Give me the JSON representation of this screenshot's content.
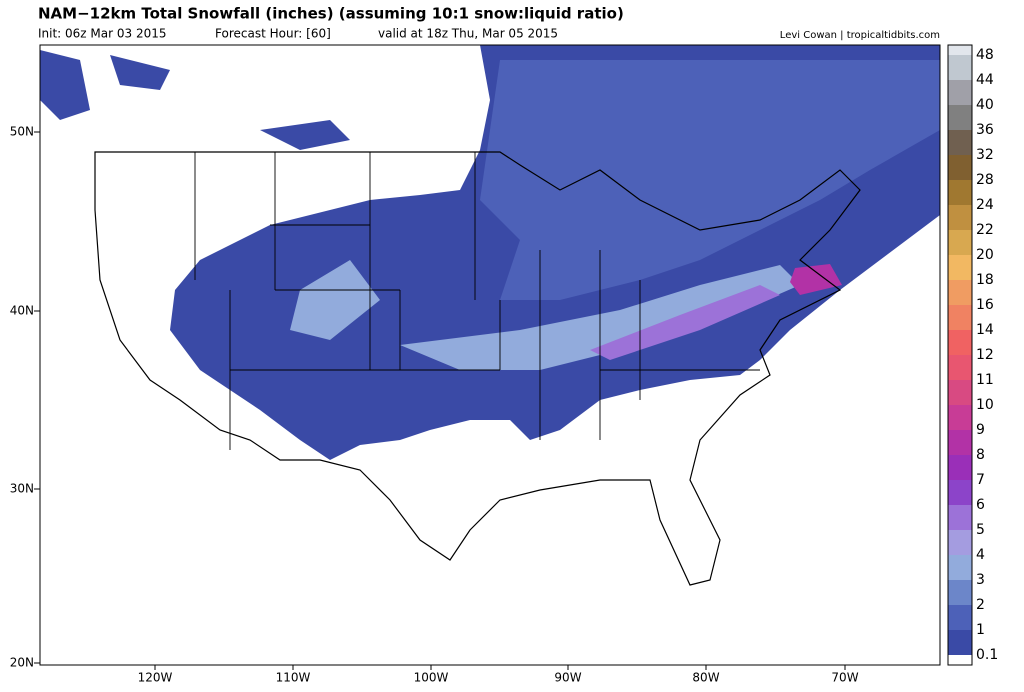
{
  "header": {
    "title": "NAM−12km Total Snowfall (inches) (assuming 10:1 snow:liquid ratio)",
    "init": "Init: 06z Mar 03 2015",
    "forecast_hour": "Forecast Hour: [60]",
    "valid": "valid at 18z Thu, Mar 05 2015",
    "credit": "Levi Cowan | tropicaltidbits.com"
  },
  "map": {
    "lat_labels": [
      "50N",
      "40N",
      "30N",
      "20N"
    ],
    "lon_labels": [
      "120W",
      "110W",
      "100W",
      "90W",
      "80W",
      "70W"
    ]
  },
  "colorbar": {
    "levels": [
      "0.1",
      "1",
      "2",
      "3",
      "4",
      "5",
      "6",
      "7",
      "8",
      "9",
      "10",
      "11",
      "12",
      "14",
      "16",
      "18",
      "20",
      "22",
      "24",
      "28",
      "32",
      "36",
      "40",
      "44",
      "48"
    ],
    "colors": [
      "#ffffff",
      "#3a4aa6",
      "#4d61b8",
      "#6c86c9",
      "#92abdc",
      "#a49ce0",
      "#9c72d8",
      "#8c44c9",
      "#9a2fb8",
      "#b232a6",
      "#c83c96",
      "#d84a82",
      "#e85670",
      "#f06262",
      "#f08262",
      "#f09c62",
      "#f2b862",
      "#d8a850",
      "#c09040",
      "#a07830",
      "#806030",
      "#706050",
      "#808080",
      "#a0a0a8",
      "#c0c8d0",
      "#e2e6ec"
    ]
  }
}
